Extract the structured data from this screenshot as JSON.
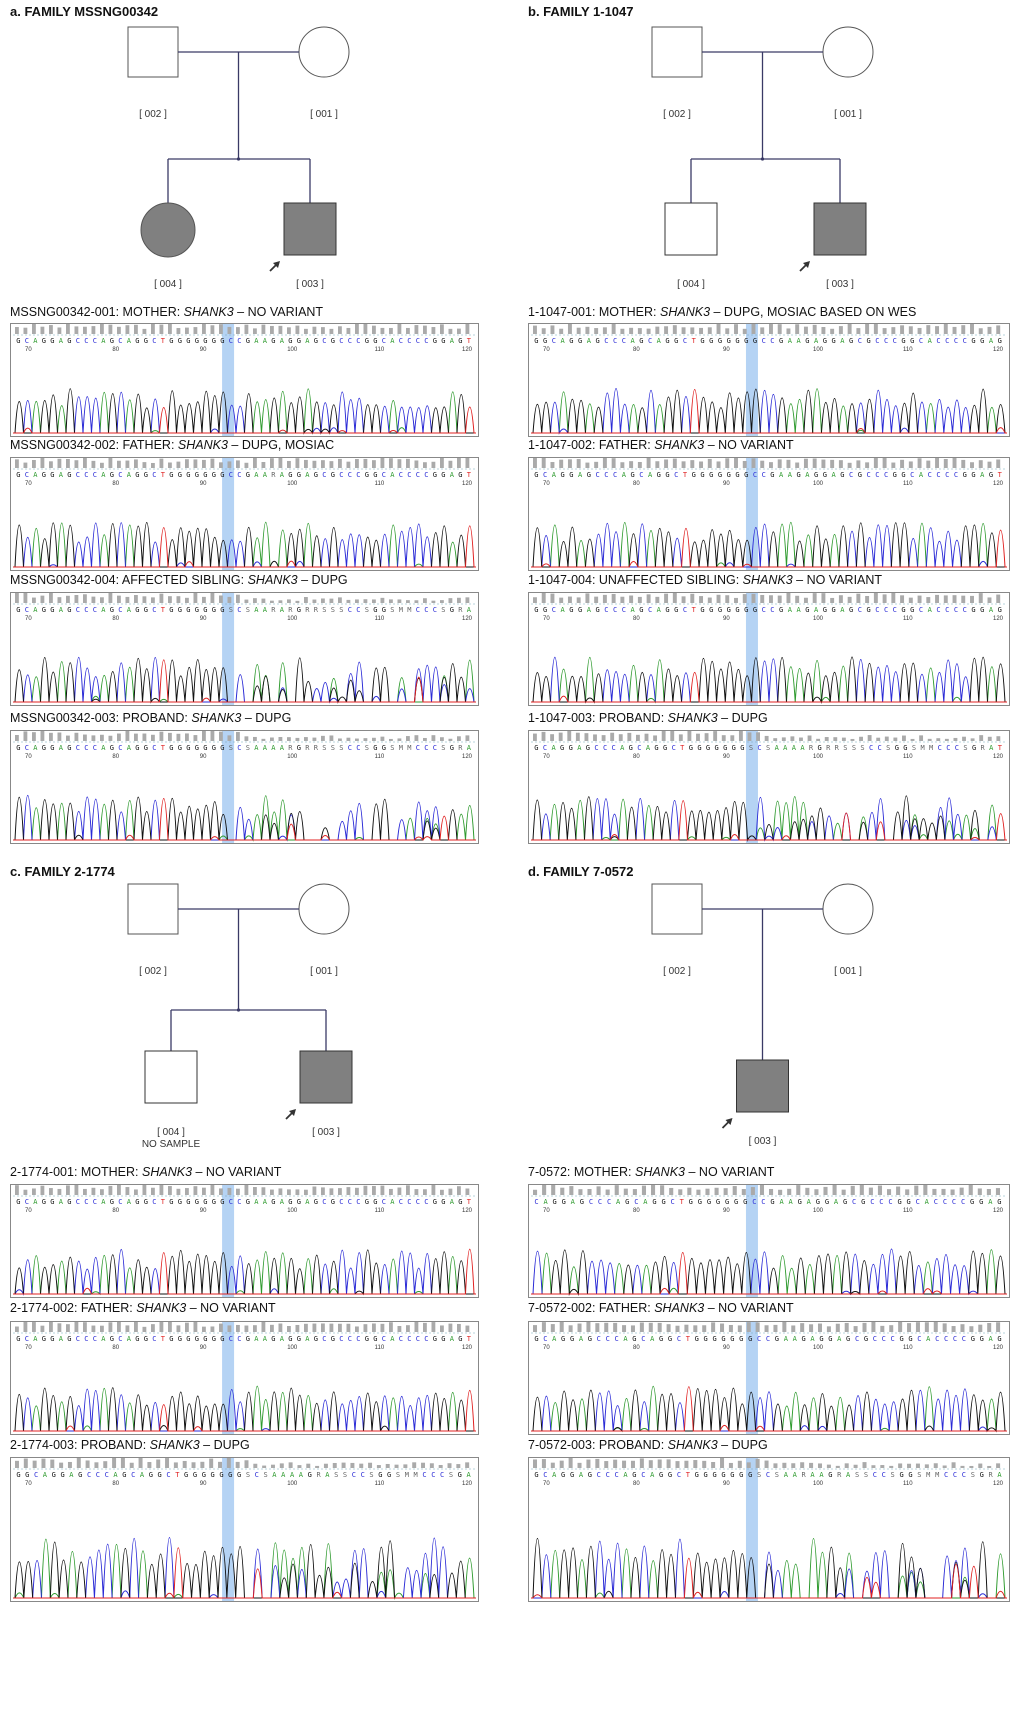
{
  "panels": [
    {
      "title": "a. FAMILY MSSNG00342",
      "pedigree": {
        "type": "two-children",
        "left_child": {
          "shape": "circle",
          "affected": true,
          "id": "[ 004 ]",
          "note": ""
        },
        "right_child": {
          "shape": "square",
          "affected": true,
          "id": "[ 003 ]",
          "proband": true
        },
        "father_id": "[ 002 ]",
        "mother_id": "[ 001 ]"
      },
      "traces": [
        {
          "label_pre": "MSSNG00342-001: MOTHER: ",
          "gene": "SHANK3",
          "label_post": " – NO VARIANT",
          "sequence": "GCAGGAGCCCAGCAGGCTGGGGGGGCCGAAGAGGAGCGCCCGGCACCCCGGAGT",
          "mixed": false
        },
        {
          "label_pre": "MSSNG00342-002: FATHER: ",
          "gene": "SHANK3",
          "label_post": " – DUPG, MOSIAC",
          "sequence": "GCAGGAGCCCAGCAGGCTGGGGGGGCCGAARAGGAGCGCCCGGCACCCCGGAGT",
          "mixed": false
        },
        {
          "label_pre": "MSSNG00342-004: AFFECTED SIBLING: ",
          "gene": "SHANK3",
          "label_post": " – DUPG",
          "sequence": "GCAGGAGCCCAGCAGGCTGGGGGGGSCSAARARGRRSSSCCSGGSMMCCCSGRA",
          "mixed": true
        },
        {
          "label_pre": "MSSNG00342-003: PROBAND: ",
          "gene": "SHANK3",
          "label_post": " – DUPG",
          "sequence": "GCAGGAGCCCAGCAGGCTGGGGGGGSCSAAAARGRRSSSCCSGGSMMCCCSGRA",
          "mixed": true
        }
      ]
    },
    {
      "title": "b. FAMILY 1-1047",
      "pedigree": {
        "type": "two-children",
        "left_child": {
          "shape": "square",
          "affected": false,
          "id": "[ 004 ]",
          "note": ""
        },
        "right_child": {
          "shape": "square",
          "affected": true,
          "id": "[ 003 ]",
          "proband": true
        },
        "father_id": "[ 002 ]",
        "mother_id": "[ 001 ]"
      },
      "traces": [
        {
          "label_pre": "1-1047-001: MOTHER: ",
          "gene": "SHANK3",
          "label_post": " – DUPG, MOSIAC BASED ON WES",
          "sequence": "GGCAGGAGCCCAGCAGGCTGGGGGGGCCGAAGAGGAGCGCCCGGCACCCCGGAG",
          "mixed": false
        },
        {
          "label_pre": "1-1047-002: FATHER: ",
          "gene": "SHANK3",
          "label_post": " – NO VARIANT",
          "sequence": "GCAGGAGCCCAGCAGGCTGGGGGGGCCGAAGAGGAGCGCCCGGCACCCCGGAGT",
          "mixed": false
        },
        {
          "label_pre": "1-1047-004: UNAFFECTED SIBLING: ",
          "gene": "SHANK3",
          "label_post": " – NO VARIANT",
          "sequence": "GGCAGGAGCCCAGCAGGCTGGGGGGGCCGAAGAGGAGCGCCCGGCACCCCGGAG",
          "mixed": false
        },
        {
          "label_pre": "1-1047-003: PROBAND: ",
          "gene": "SHANK3",
          "label_post": " – DUPG",
          "sequence": "GCAGGAGCCCAGCAGGCTGGGGGGGSCSAAAARGRRSSSCCSGGSMMCCCSGRAT",
          "mixed": true
        }
      ]
    },
    {
      "title": "c. FAMILY 2-1774",
      "pedigree": {
        "type": "two-children",
        "left_child": {
          "shape": "square",
          "affected": false,
          "id": "[ 004 ]",
          "note": "NO SAMPLE"
        },
        "right_child": {
          "shape": "square",
          "affected": true,
          "id": "[ 003 ]",
          "proband": true
        },
        "father_id": "[ 002 ]",
        "mother_id": "[ 001 ]"
      },
      "traces": [
        {
          "label_pre": "2-1774-001: MOTHER: ",
          "gene": "SHANK3",
          "label_post": " – NO VARIANT",
          "sequence": "GCAGGAGCCCAGCAGGCTGGGGGGGCCGAAGAGGAGCGCCCGGCACCCCGGAGT",
          "mixed": false
        },
        {
          "label_pre": "2-1774-002: FATHER: ",
          "gene": "SHANK3",
          "label_post": " – NO VARIANT",
          "sequence": "GCAGGAGCCCAGCAGGCTGGGGGGGCCGAAGAGGAGCGCCCGGCACCCCGGAGT",
          "mixed": false
        },
        {
          "label_pre": "2-1774-003: PROBAND: ",
          "gene": "SHANK3",
          "label_post": " – DUPG",
          "sequence": "GGCAGGAGCCCAGCAGGCTGGGGGGGSCSAAAAGRASSCCSGGSMMCCCSGA",
          "mixed": true
        }
      ]
    },
    {
      "title": "d. FAMILY 7-0572",
      "pedigree": {
        "type": "one-child",
        "child": {
          "shape": "square",
          "affected": true,
          "id": "[ 003 ]",
          "proband": true
        },
        "father_id": "[ 002 ]",
        "mother_id": "[ 001 ]"
      },
      "traces": [
        {
          "label_pre": "7-0572: MOTHER: ",
          "gene": "SHANK3",
          "label_post": " – NO VARIANT",
          "sequence": "CAGGAGCCCAGCAGGCTGGGGGGGCCGAAGAGGAGCGCCCGGCACCCCGGAG",
          "mixed": false
        },
        {
          "label_pre": "7-0572-002: FATHER: ",
          "gene": "SHANK3",
          "label_post": " – NO VARIANT",
          "sequence": "GCAGGAGCCCAGCAGGCTGGGGGGGCCGAAGAGGAGCGCCCGGCACCCCGGAG",
          "mixed": false
        },
        {
          "label_pre": "7-0572-003: PROBAND: ",
          "gene": "SHANK3",
          "label_post": " – DUPG",
          "sequence": "GCAGGAGCCCAGCAGGCTGGGGGGGSCSAARAAGRASSCCSGGSMMCCCSGRA",
          "mixed": true
        }
      ]
    }
  ],
  "tick_numbers": [
    "70",
    "80",
    "90",
    "100",
    "110",
    "120"
  ],
  "colors": {
    "A": "#2e9a2e",
    "C": "#2a2ad6",
    "G": "#111111",
    "T": "#e02020",
    "ambiguous": "#666666",
    "highlight": "#9cc4f0",
    "line": "#3a3a66",
    "affected_fill": "#808080"
  }
}
